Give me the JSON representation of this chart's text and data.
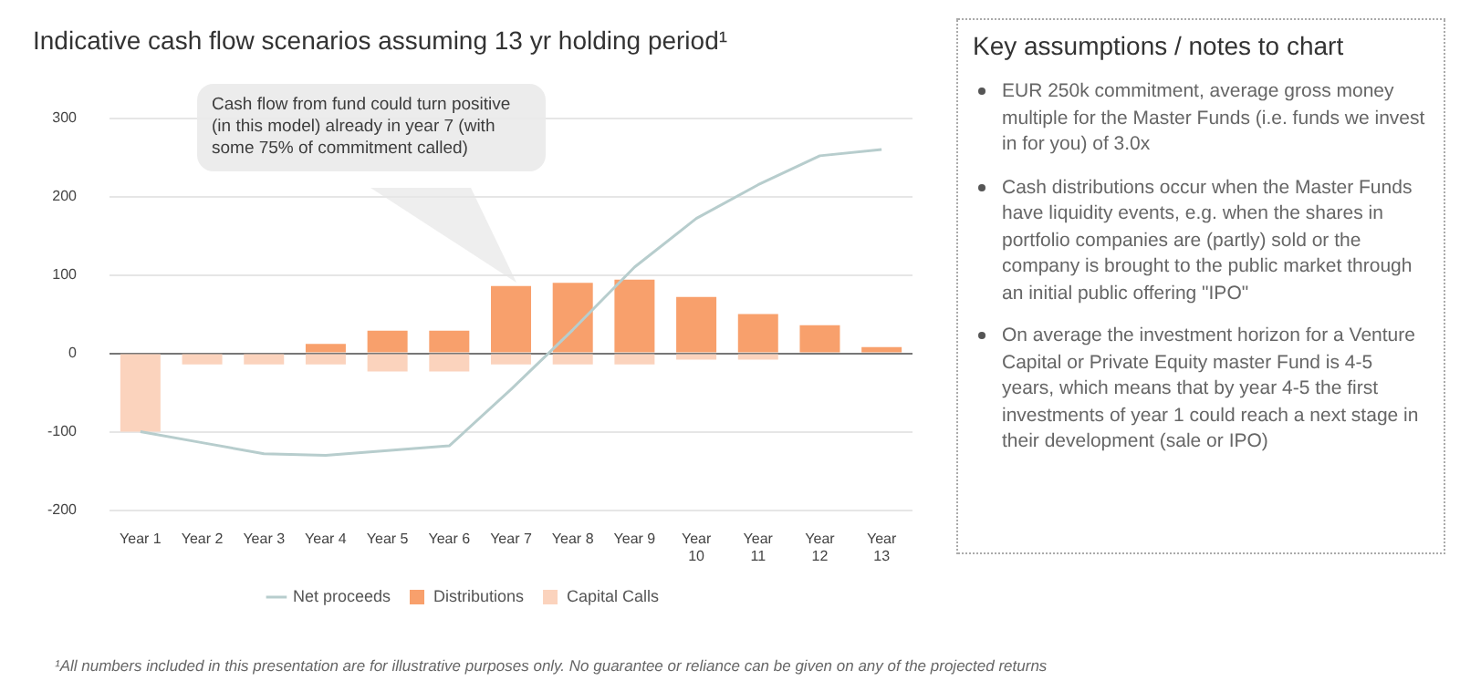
{
  "chart_data": [
    {
      "type": "bar",
      "title": "Indicative cash flow scenarios assuming 13 yr holding period¹",
      "categories": [
        "Year 1",
        "Year 2",
        "Year 3",
        "Year 4",
        "Year 5",
        "Year 6",
        "Year 7",
        "Year 8",
        "Year 9",
        "Year 10",
        "Year 11",
        "Year 12",
        "Year 13"
      ],
      "stacked": true,
      "series": [
        {
          "name": "Net proceeds",
          "type": "line",
          "color": "#b7cdcd",
          "values": [
            -100,
            -114,
            -128,
            -130,
            -124,
            -118,
            -46,
            30,
            110,
            172,
            215,
            252,
            260
          ]
        },
        {
          "name": "Distributions",
          "color": "#f8a06c",
          "values": [
            0,
            0,
            0,
            12,
            29,
            29,
            86,
            90,
            94,
            72,
            50,
            36,
            8
          ]
        },
        {
          "name": "Capital Calls",
          "color": "#fbd3bd",
          "values": [
            -100,
            -14,
            -14,
            -14,
            -23,
            -23,
            -14,
            -14,
            -14,
            -8,
            -8,
            0,
            0
          ]
        }
      ],
      "marker": "none",
      "ylim": [
        -200,
        300
      ],
      "yticks": [
        -200,
        -100,
        0,
        100,
        200,
        300
      ],
      "grid": "y",
      "legend": "bottom",
      "annotations": [
        "Cash flow from fund could turn positive (in this model) already in year 7 (with some 75% of commitment called)",
        "¹All numbers included in this presentation are for illustrative purposes only. No guarantee or reliance can be  given on any of the projected returns"
      ]
    },
    {
      "type": "other",
      "title": "Key assumptions / notes to chart",
      "annotations": [
        "EUR 250k commitment, average gross money multiple for the Master Funds (i.e. funds we invest in for you) of 3.0x",
        "Cash distributions occur when the Master Funds have liquidity events, e.g. when the shares in  portfolio companies are (partly) sold or the company is brought to the public market through an initial public offering \"IPO\"",
        "On average the investment horizon for a Venture Capital or Private Equity master Fund is 4-5 years, which means that by year 4-5 the first investments of year 1 could reach a next stage in their development (sale or IPO)"
      ]
    }
  ]
}
